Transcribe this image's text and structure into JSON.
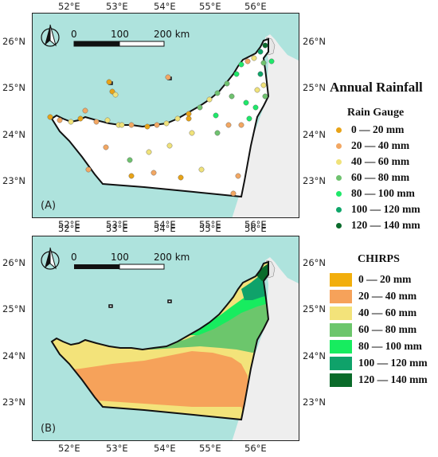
{
  "panels": [
    {
      "label": "(A)"
    },
    {
      "label": "(B)"
    }
  ],
  "axes": {
    "lon_ticks": [
      "52°E",
      "53°E",
      "54°E",
      "55°E",
      "56°E"
    ],
    "lat_ticks": [
      "26°N",
      "25°N",
      "24°N",
      "23°N"
    ]
  },
  "scale_bar": {
    "labels": [
      "0",
      "100",
      "200 km"
    ]
  },
  "north_arrow": {
    "icon": "north-arrow-icon"
  },
  "legend_a": {
    "heading": "Annual Rainfall",
    "title": "Rain Gauge",
    "items": [
      {
        "label": "0  — 20 mm",
        "color": "#e8a317"
      },
      {
        "label": "20 — 40 mm",
        "color": "#f2a763"
      },
      {
        "label": "40 — 60 mm",
        "color": "#f0e27a"
      },
      {
        "label": "60 — 80 mm",
        "color": "#6fc26f"
      },
      {
        "label": "80 — 100 mm",
        "color": "#1fe86a"
      },
      {
        "label": "100 — 120 mm",
        "color": "#0fa66a"
      },
      {
        "label": "120 — 140 mm",
        "color": "#0b6b2c"
      }
    ]
  },
  "legend_b": {
    "title": "CHIRPS",
    "items": [
      {
        "label": "0  — 20 mm",
        "color": "#f2ae0c"
      },
      {
        "label": "20 — 40 mm",
        "color": "#f6a25a"
      },
      {
        "label": "40 — 60 mm",
        "color": "#f3e37a"
      },
      {
        "label": "60 — 80 mm",
        "color": "#6cc66c"
      },
      {
        "label": "80 — 100 mm",
        "color": "#17ec5f"
      },
      {
        "label": "100 — 120 mm",
        "color": "#0fa26a"
      },
      {
        "label": "120 — 140 mm",
        "color": "#0a6b2a"
      }
    ]
  },
  "colors": {
    "sea": "#aee3dd",
    "land_uae": "#ffffff",
    "land_oman": "#f1f1f1",
    "border": "#111111"
  }
}
